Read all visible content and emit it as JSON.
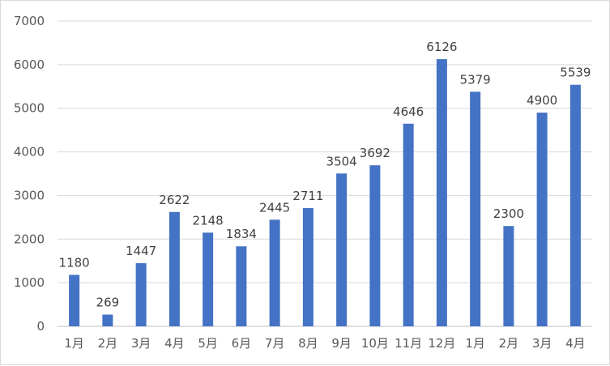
{
  "chart_data": {
    "type": "bar",
    "title": "",
    "xlabel": "",
    "ylabel": "",
    "ylim": [
      0,
      7000
    ],
    "yticks": [
      0,
      1000,
      2000,
      3000,
      4000,
      5000,
      6000,
      7000
    ],
    "grid": true,
    "legend": "none",
    "color": "#4472c4",
    "categories": [
      "1月",
      "2月",
      "3月",
      "4月",
      "5月",
      "6月",
      "7月",
      "8月",
      "9月",
      "10月",
      "11月",
      "12月",
      "1月",
      "2月",
      "3月",
      "4月"
    ],
    "values": [
      1180,
      269,
      1447,
      2622,
      2148,
      1834,
      2445,
      2711,
      3504,
      3692,
      4646,
      6126,
      5379,
      2300,
      4900,
      5539
    ]
  }
}
